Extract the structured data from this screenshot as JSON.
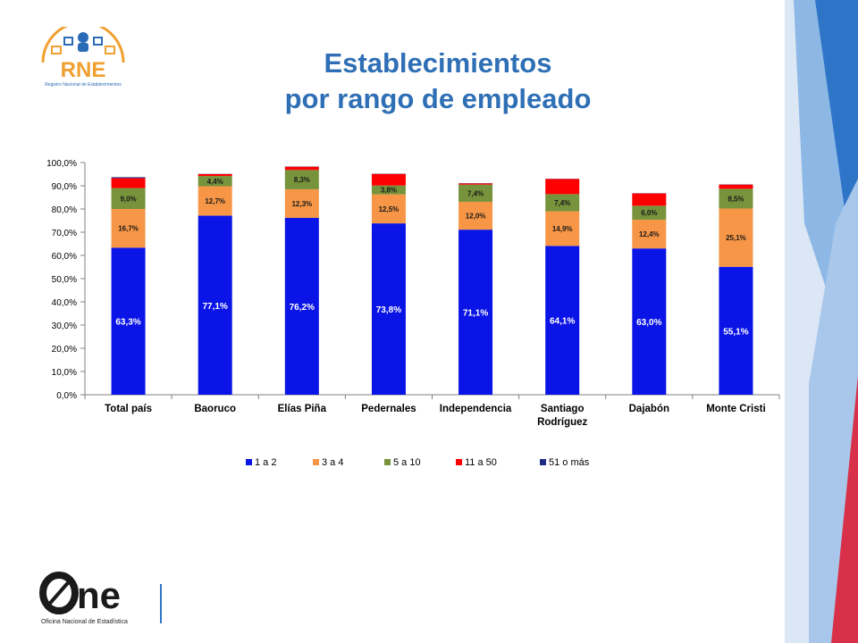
{
  "header": {
    "title_line1": "Establecimientos",
    "title_line2": "por rango de empleado"
  },
  "logos": {
    "rne_text": "RNE",
    "rne_subtitle": "Registro Nacional de Establecimientos",
    "one_text": "ne",
    "one_subtitle": "Oficina Nacional de Estadística"
  },
  "chart_data": {
    "type": "bar",
    "stacked": true,
    "title": "",
    "xlabel": "",
    "ylabel": "",
    "ylim": [
      0,
      100
    ],
    "y_ticks": [
      "0,0%",
      "10,0%",
      "20,0%",
      "30,0%",
      "40,0%",
      "50,0%",
      "60,0%",
      "70,0%",
      "80,0%",
      "90,0%",
      "100,0%"
    ],
    "categories": [
      "Total país",
      "Baoruco",
      "Elías Piña",
      "Pedernales",
      "Independencia",
      "Santiago Rodríguez",
      "Dajabón",
      "Monte Cristi"
    ],
    "series": [
      {
        "name": "1 a 2",
        "color": "#0a14e6",
        "values": [
          63.3,
          77.1,
          76.2,
          73.8,
          71.1,
          64.1,
          63.0,
          55.1
        ],
        "labels": [
          "63,3%",
          "77,1%",
          "76,2%",
          "73,8%",
          "71,1%",
          "64,1%",
          "63,0%",
          "55,1%"
        ]
      },
      {
        "name": "3 a 4",
        "color": "#f79646",
        "values": [
          16.7,
          12.7,
          12.3,
          12.5,
          12.0,
          14.9,
          12.4,
          25.1
        ],
        "labels": [
          "16,7%",
          "12,7%",
          "12,3%",
          "12,5%",
          "12,0%",
          "14,9%",
          "12,4%",
          "25,1%"
        ]
      },
      {
        "name": "5 a 10",
        "color": "#77933c",
        "values": [
          9.0,
          4.4,
          8.3,
          3.8,
          7.4,
          7.4,
          6.0,
          8.5
        ],
        "labels": [
          "9,0%",
          "4,4%",
          "8,3%",
          "3,8%",
          "7,4%",
          "7,4%",
          "6,0%",
          "8,5%"
        ]
      },
      {
        "name": "11 a 50",
        "color": "#ff0000",
        "values": [
          4.3,
          0.8,
          1.4,
          5.0,
          0.5,
          6.5,
          5.3,
          1.8
        ],
        "labels": [
          "",
          "",
          "",
          "",
          "",
          "",
          "",
          ""
        ]
      },
      {
        "name": "51 o más",
        "color": "#1f2d86",
        "values": [
          0.4,
          0.1,
          0.1,
          0.1,
          0.1,
          0.1,
          0.1,
          0.1
        ],
        "labels": [
          "",
          "",
          "",
          "",
          "",
          "",
          "",
          ""
        ]
      }
    ],
    "legend_position": "bottom",
    "grid": false
  }
}
